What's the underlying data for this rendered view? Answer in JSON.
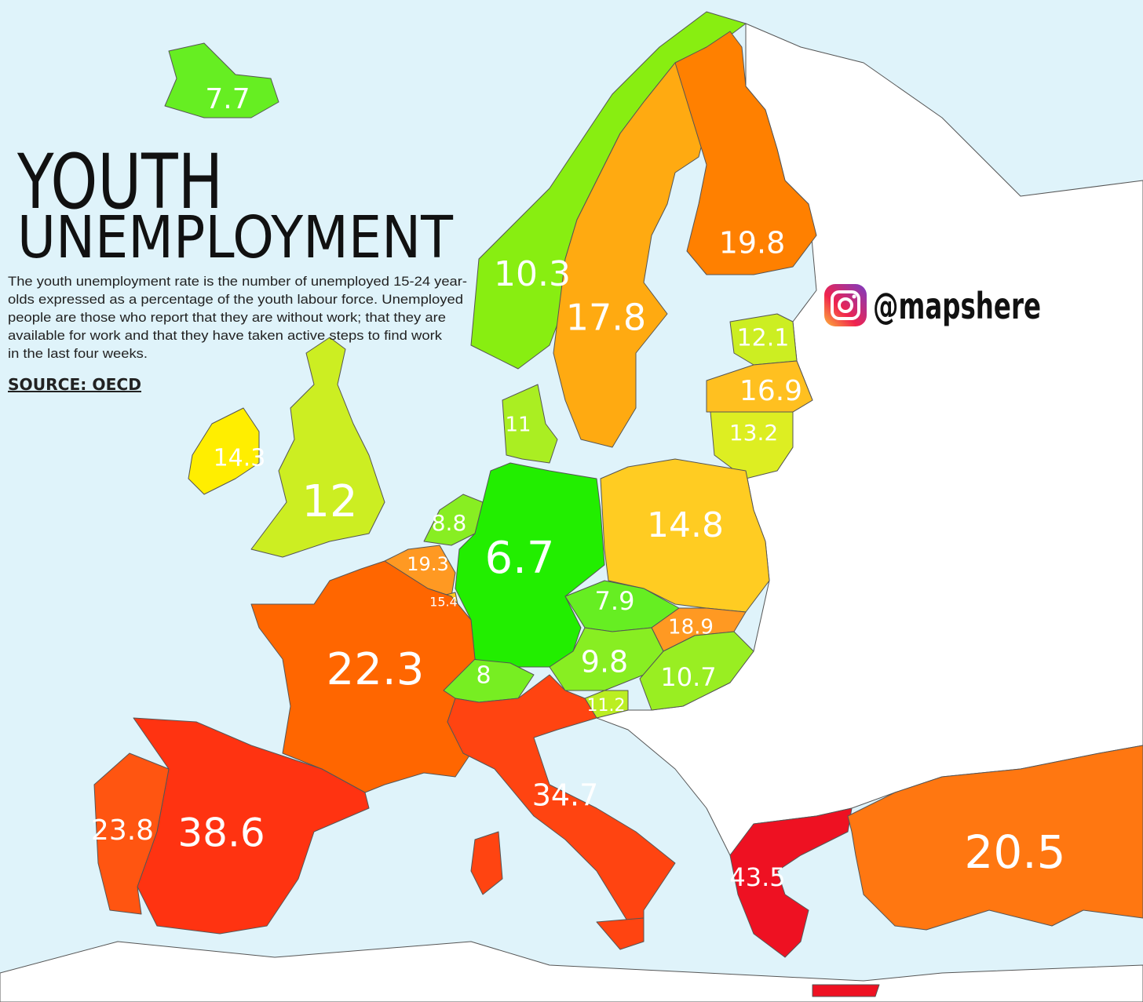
{
  "title": [
    "YOUTH",
    "UNEMPLOYMENT"
  ],
  "description": [
    "The youth unemployment rate is the number of unemployed 15-24 year-",
    "olds expressed as a percentage of the youth labour force. Unemployed",
    "people are those who report that they are without work; that they are",
    "available for work and that they have taken active steps to find work",
    "in the last four weeks."
  ],
  "source": "SOURCE: OECD",
  "handle": "@mapshere",
  "regions": [
    {
      "value": 7.7,
      "color": "#66ee22"
    },
    {
      "value": 10.3,
      "color": "#88ee11"
    },
    {
      "value": 17.8,
      "color": "#ffaa11"
    },
    {
      "value": 19.8,
      "color": "#ff8000"
    },
    {
      "value": 12.1,
      "color": "#ccee22"
    },
    {
      "value": 16.9,
      "color": "#ffc020"
    },
    {
      "value": 13.2,
      "color": "#ddee22"
    },
    {
      "value": 11,
      "color": "#aaee22"
    },
    {
      "value": 14.3,
      "color": "#ffee00"
    },
    {
      "value": 12,
      "color": "#ccee22"
    },
    {
      "value": 8.8,
      "color": "#88ee22"
    },
    {
      "value": 19.3,
      "color": "#ff9922"
    },
    {
      "value": 15.4,
      "color": "#ffcc22"
    },
    {
      "value": 6.7,
      "color": "#22ee00"
    },
    {
      "value": 14.8,
      "color": "#ffcc22"
    },
    {
      "value": 7.9,
      "color": "#66ee22"
    },
    {
      "value": 18.9,
      "color": "#ff9922"
    },
    {
      "value": 9.8,
      "color": "#88ee22"
    },
    {
      "value": 10.7,
      "color": "#99ee22"
    },
    {
      "value": 8,
      "color": "#77ee22"
    },
    {
      "value": 11.2,
      "color": "#bbee22"
    },
    {
      "value": 22.3,
      "color": "#ff6600"
    },
    {
      "value": 34.7,
      "color": "#ff4411"
    },
    {
      "value": 38.6,
      "color": "#ff3311"
    },
    {
      "value": 23.8,
      "color": "#ff5511"
    },
    {
      "value": 43.5,
      "color": "#ee1122"
    },
    {
      "value": 20.5,
      "color": "#ff7711"
    }
  ]
}
